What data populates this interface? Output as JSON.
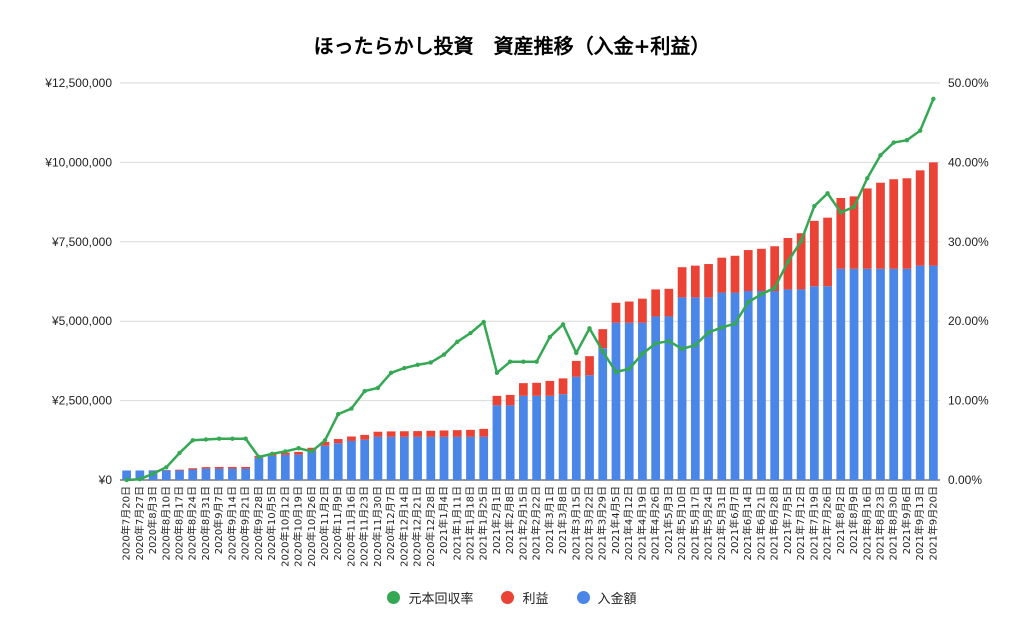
{
  "chart_data": {
    "type": "bar+line",
    "title": "ほったらかし投資　資産推移（入金+利益）",
    "categories": [
      "2020年7月20日",
      "2020年7月27日",
      "2020年8月3日",
      "2020年8月10日",
      "2020年8月17日",
      "2020年8月24日",
      "2020年8月31日",
      "2020年9月7日",
      "2020年9月14日",
      "2020年9月21日",
      "2020年9月28日",
      "2020年10月5日",
      "2020年10月12日",
      "2020年10月19日",
      "2020年10月26日",
      "2020年11月2日",
      "2020年11月9日",
      "2020年11月16日",
      "2020年11月23日",
      "2020年11月30日",
      "2020年12月7日",
      "2020年12月14日",
      "2020年12月21日",
      "2020年12月28日",
      "2021年1月4日",
      "2021年1月11日",
      "2021年1月18日",
      "2021年1月25日",
      "2021年2月1日",
      "2021年2月8日",
      "2021年2月15日",
      "2021年2月22日",
      "2021年3月1日",
      "2021年3月8日",
      "2021年3月15日",
      "2021年3月22日",
      "2021年3月29日",
      "2021年4月5日",
      "2021年4月12日",
      "2021年4月19日",
      "2021年4月26日",
      "2021年5月3日",
      "2021年5月10日",
      "2021年5月17日",
      "2021年5月24日",
      "2021年5月31日",
      "2021年6月7日",
      "2021年6月14日",
      "2021年6月21日",
      "2021年6月28日",
      "2021年7月5日",
      "2021年7月12日",
      "2021年7月19日",
      "2021年7月26日",
      "2021年8月2日",
      "2021年8月9日",
      "2021年8月16日",
      "2021年8月23日",
      "2021年8月30日",
      "2021年9月6日",
      "2021年9月13日",
      "2021年9月20日"
    ],
    "series": [
      {
        "name": "入金額",
        "type": "bar",
        "color": "#4a86e8",
        "values": [
          300000,
          300000,
          300000,
          300000,
          300000,
          330000,
          360000,
          360000,
          360000,
          360000,
          700000,
          760000,
          790000,
          800000,
          920000,
          1080000,
          1160000,
          1230000,
          1270000,
          1360000,
          1360000,
          1360000,
          1360000,
          1360000,
          1360000,
          1360000,
          1360000,
          1360000,
          2350000,
          2350000,
          2650000,
          2650000,
          2650000,
          2700000,
          3250000,
          3300000,
          4150000,
          4950000,
          4950000,
          4950000,
          5150000,
          5150000,
          5750000,
          5750000,
          5750000,
          5900000,
          5900000,
          5950000,
          5950000,
          5950000,
          6000000,
          6000000,
          6100000,
          6100000,
          6650000,
          6650000,
          6650000,
          6650000,
          6650000,
          6650000,
          6750000,
          6750000
        ]
      },
      {
        "name": "利益",
        "type": "bar",
        "color": "#ea4335",
        "values": [
          0,
          0,
          5000,
          12000,
          25000,
          40000,
          45000,
          50000,
          50000,
          52000,
          60000,
          70000,
          75000,
          85000,
          95000,
          120000,
          130000,
          140000,
          150000,
          160000,
          170000,
          175000,
          180000,
          190000,
          200000,
          210000,
          220000,
          250000,
          300000,
          330000,
          400000,
          410000,
          470000,
          500000,
          500000,
          600000,
          600000,
          630000,
          670000,
          760000,
          850000,
          870000,
          950000,
          1000000,
          1050000,
          1100000,
          1160000,
          1290000,
          1330000,
          1410000,
          1620000,
          1770000,
          2060000,
          2160000,
          2230000,
          2280000,
          2530000,
          2710000,
          2820000,
          2850000,
          3000000,
          3250000
        ]
      },
      {
        "name": "元本回収率",
        "type": "line",
        "axis": "right",
        "color": "#34a853",
        "values": [
          0.0,
          0.1,
          0.8,
          1.6,
          3.4,
          5.0,
          5.1,
          5.2,
          5.2,
          5.2,
          2.9,
          3.3,
          3.6,
          4.0,
          3.6,
          5.0,
          8.3,
          9.0,
          11.2,
          11.6,
          13.5,
          14.1,
          14.5,
          14.8,
          15.8,
          17.4,
          18.5,
          19.9,
          13.5,
          14.9,
          14.9,
          14.9,
          18.0,
          19.6,
          16.0,
          19.1,
          16.2,
          13.6,
          14.0,
          15.9,
          17.2,
          17.5,
          16.5,
          17.0,
          18.6,
          19.2,
          19.7,
          22.4,
          23.4,
          24.2,
          27.5,
          30.1,
          34.5,
          36.1,
          33.7,
          34.4,
          38.0,
          40.9,
          42.5,
          42.8,
          44.0,
          48.0
        ]
      }
    ],
    "y_left": {
      "min": 0,
      "max": 12500000,
      "ticks": [
        "¥0",
        "¥2,500,000",
        "¥5,000,000",
        "¥7,500,000",
        "¥10,000,000",
        "¥12,500,000"
      ]
    },
    "y_right": {
      "min": 0,
      "max": 50,
      "ticks": [
        "0.00%",
        "10.00%",
        "20.00%",
        "30.00%",
        "40.00%",
        "50.00%"
      ]
    },
    "legend": [
      {
        "label": "元本回収率",
        "color": "#34a853"
      },
      {
        "label": "利益",
        "color": "#ea4335"
      },
      {
        "label": "入金額",
        "color": "#4a86e8"
      }
    ],
    "legend_position": "bottom",
    "grid": true
  }
}
